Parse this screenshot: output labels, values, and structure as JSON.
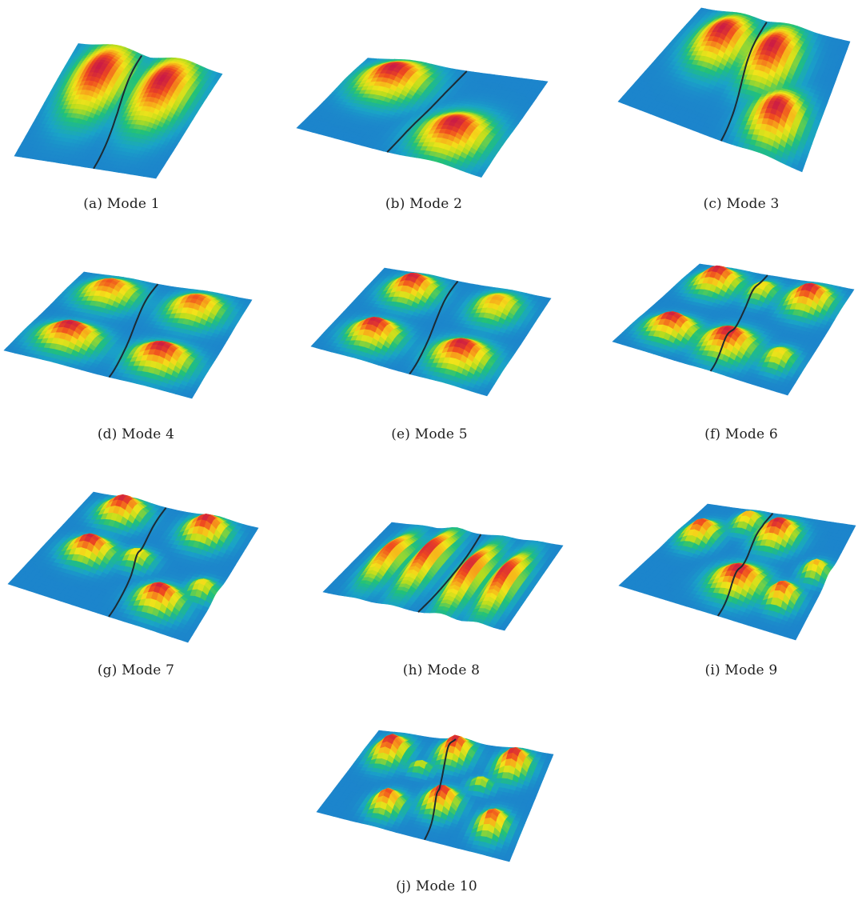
{
  "figure": {
    "colormap": [
      "#1f5fd0",
      "#1aa3c8",
      "#21c17a",
      "#b6dc1e",
      "#f3e31a",
      "#f7a21a",
      "#ef4a1f",
      "#c81848"
    ],
    "nodal_line_color": "#1c2a33",
    "panels": [
      {
        "caption": "(a) Mode 1",
        "mode": 1
      },
      {
        "caption": "(b) Mode 2",
        "mode": 2
      },
      {
        "caption": "(c) Mode 3",
        "mode": 3
      },
      {
        "caption": "(d) Mode 4",
        "mode": 4
      },
      {
        "caption": "(e) Mode 5",
        "mode": 5
      },
      {
        "caption": "(f) Mode 6",
        "mode": 6
      },
      {
        "caption": "(g) Mode 7",
        "mode": 7
      },
      {
        "caption": "(h) Mode 8",
        "mode": 8
      },
      {
        "caption": "(i) Mode 9",
        "mode": 9
      },
      {
        "caption": "(j) Mode 10",
        "mode": 10
      }
    ]
  }
}
